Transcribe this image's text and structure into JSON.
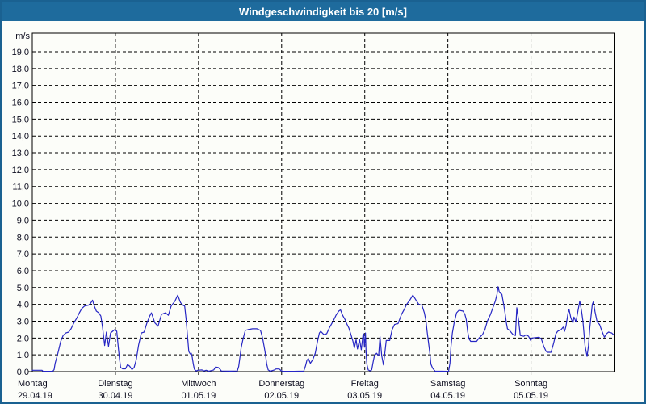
{
  "window": {
    "title": "Windgeschwindigkeit bis 20 [m/s]"
  },
  "colors": {
    "titlebar_bg": "#1e6b9d",
    "frame_border": "#1a6191",
    "page_bg": "#fcfdf9",
    "grid": "#000000",
    "axis": "#000000",
    "line": "#2626c4",
    "text": "#0c0c1e",
    "title_text": "#ffffff"
  },
  "chart_data": {
    "type": "line",
    "title": "Windgeschwindigkeit bis 20 [m/s]",
    "ylabel": "m/s",
    "unit_label": "m/s",
    "ylim": [
      0,
      20.2
    ],
    "y_tick_step": 1.0,
    "y_tick_labels": [
      "0,0",
      "1,0",
      "2,0",
      "3,0",
      "4,0",
      "5,0",
      "6,0",
      "7,0",
      "8,0",
      "9,0",
      "10,0",
      "11,0",
      "12,0",
      "13,0",
      "14,0",
      "15,0",
      "16,0",
      "17,0",
      "18,0",
      "19,0"
    ],
    "grid": "dashed",
    "legend": "none",
    "x_range_hours": [
      0,
      168
    ],
    "x_days": [
      {
        "name": "Montag",
        "date": "29.04.19"
      },
      {
        "name": "Dienstag",
        "date": "30.04.19"
      },
      {
        "name": "Mittwoch",
        "date": "01.05.19"
      },
      {
        "name": "Donnerstag",
        "date": "02.05.19"
      },
      {
        "name": "Freitag",
        "date": "03.05.19"
      },
      {
        "name": "Samstag",
        "date": "04.05.19"
      },
      {
        "name": "Sonntag",
        "date": "05.05.19"
      }
    ],
    "series": [
      {
        "name": "Windgeschwindigkeit",
        "color": "#2626c4",
        "points": [
          [
            0,
            0.08
          ],
          [
            2.8,
            0.08
          ],
          [
            3.1,
            0.02
          ],
          [
            5.9,
            0.02
          ],
          [
            6.3,
            0.12
          ],
          [
            6.6,
            0.5
          ],
          [
            7.4,
            1.1
          ],
          [
            8.2,
            1.8
          ],
          [
            8.9,
            2.15
          ],
          [
            9.7,
            2.3
          ],
          [
            10.5,
            2.35
          ],
          [
            11.2,
            2.55
          ],
          [
            12,
            2.9
          ],
          [
            12.9,
            3.2
          ],
          [
            13.6,
            3.5
          ],
          [
            14.3,
            3.75
          ],
          [
            15.1,
            3.9
          ],
          [
            16.2,
            3.95
          ],
          [
            16.8,
            4.05
          ],
          [
            17.4,
            4.25
          ],
          [
            17.9,
            3.9
          ],
          [
            18.5,
            3.6
          ],
          [
            19.2,
            3.5
          ],
          [
            19.8,
            3.3
          ],
          [
            20.3,
            2.6
          ],
          [
            20.9,
            1.55
          ],
          [
            21.4,
            2.35
          ],
          [
            22,
            1.5
          ],
          [
            22.6,
            2.3
          ],
          [
            23.2,
            2.4
          ],
          [
            23.8,
            2.5
          ],
          [
            24.4,
            2.4
          ],
          [
            24.9,
            1.3
          ],
          [
            25.2,
            0.72
          ],
          [
            25.5,
            0.25
          ],
          [
            26.1,
            0.17
          ],
          [
            26.9,
            0.17
          ],
          [
            27.5,
            0.42
          ],
          [
            28.1,
            0.33
          ],
          [
            28.8,
            0.12
          ],
          [
            29.4,
            0.25
          ],
          [
            30,
            0.7
          ],
          [
            30.7,
            1.6
          ],
          [
            31.5,
            2.3
          ],
          [
            32.3,
            2.35
          ],
          [
            33.1,
            2.9
          ],
          [
            33.9,
            3.3
          ],
          [
            34.4,
            3.5
          ],
          [
            35.4,
            2.9
          ],
          [
            36.3,
            2.7
          ],
          [
            37.3,
            3.4
          ],
          [
            38.5,
            3.5
          ],
          [
            39.3,
            3.35
          ],
          [
            40.1,
            3.9
          ],
          [
            41.2,
            4.2
          ],
          [
            42,
            4.55
          ],
          [
            42.8,
            4.1
          ],
          [
            43.5,
            3.95
          ],
          [
            44,
            3.9
          ],
          [
            44.4,
            3.15
          ],
          [
            44.9,
            1.9
          ],
          [
            45.2,
            1.2
          ],
          [
            45.6,
            1.05
          ],
          [
            45.9,
            1.1
          ],
          [
            46.2,
            0.85
          ],
          [
            46.5,
            0.45
          ],
          [
            46.8,
            0.15
          ],
          [
            47.3,
            0.04
          ],
          [
            47.8,
            0.08
          ],
          [
            49,
            0.1
          ],
          [
            49.6,
            0.04
          ],
          [
            50.2,
            0.08
          ],
          [
            51,
            0.03
          ],
          [
            52.4,
            0.1
          ],
          [
            52.9,
            0.28
          ],
          [
            53.7,
            0.25
          ],
          [
            54.2,
            0.15
          ],
          [
            54.6,
            0.04
          ],
          [
            57.2,
            0.03
          ],
          [
            59.2,
            0.04
          ],
          [
            59.6,
            0.3
          ],
          [
            60,
            0.9
          ],
          [
            60.3,
            1.4
          ],
          [
            60.8,
            1.9
          ],
          [
            61.5,
            2.45
          ],
          [
            62.3,
            2.5
          ],
          [
            63.6,
            2.55
          ],
          [
            64.9,
            2.55
          ],
          [
            65.9,
            2.45
          ],
          [
            66.5,
            2.0
          ],
          [
            67.2,
            1.2
          ],
          [
            67.7,
            0.45
          ],
          [
            68.1,
            0.1
          ],
          [
            68.7,
            0.03
          ],
          [
            69.9,
            0.1
          ],
          [
            70.4,
            0.16
          ],
          [
            71.3,
            0.16
          ],
          [
            71.9,
            0.05
          ],
          [
            72.5,
            0.02
          ],
          [
            75.5,
            0.02
          ],
          [
            78.4,
            0.03
          ],
          [
            78.9,
            0.35
          ],
          [
            79.3,
            0.67
          ],
          [
            79.7,
            0.78
          ],
          [
            80.3,
            0.5
          ],
          [
            81,
            0.72
          ],
          [
            81.7,
            1.1
          ],
          [
            82.3,
            1.75
          ],
          [
            82.9,
            2.3
          ],
          [
            83.3,
            2.4
          ],
          [
            84.2,
            2.2
          ],
          [
            85,
            2.25
          ],
          [
            85.9,
            2.65
          ],
          [
            87,
            3.05
          ],
          [
            87.7,
            3.35
          ],
          [
            88.5,
            3.6
          ],
          [
            89,
            3.67
          ],
          [
            89.6,
            3.35
          ],
          [
            90.3,
            3.1
          ],
          [
            90.8,
            2.85
          ],
          [
            91.4,
            2.6
          ],
          [
            92,
            2.2
          ],
          [
            92.6,
            1.8
          ],
          [
            93,
            1.4
          ],
          [
            93.5,
            1.9
          ],
          [
            93.9,
            1.35
          ],
          [
            94.5,
            1.9
          ],
          [
            95,
            1.3
          ],
          [
            95.5,
            2.2
          ],
          [
            95.7,
            2.25
          ],
          [
            95.9,
            1.45
          ],
          [
            96.2,
            2.3
          ],
          [
            96.4,
            1.1
          ],
          [
            96.6,
            0.45
          ],
          [
            97,
            0.1
          ],
          [
            97.5,
            0.05
          ],
          [
            98,
            0.1
          ],
          [
            98.4,
            0.55
          ],
          [
            98.8,
            0.95
          ],
          [
            99.4,
            1.1
          ],
          [
            100,
            0.95
          ],
          [
            100.4,
            2.08
          ],
          [
            100.9,
            0.95
          ],
          [
            101.4,
            0.4
          ],
          [
            102.2,
            1.85
          ],
          [
            103.2,
            1.85
          ],
          [
            103.9,
            2.5
          ],
          [
            104.6,
            2.8
          ],
          [
            105.6,
            2.85
          ],
          [
            106.6,
            3.4
          ],
          [
            107.4,
            3.7
          ],
          [
            108.1,
            4.0
          ],
          [
            109,
            4.25
          ],
          [
            109.9,
            4.55
          ],
          [
            110.8,
            4.25
          ],
          [
            111.6,
            4.0
          ],
          [
            112.5,
            3.95
          ],
          [
            113.2,
            3.5
          ],
          [
            113.7,
            3.0
          ],
          [
            114,
            2.4
          ],
          [
            114.4,
            1.75
          ],
          [
            114.8,
            1.1
          ],
          [
            115.1,
            0.45
          ],
          [
            115.6,
            0.2
          ],
          [
            116.3,
            0.03
          ],
          [
            120.2,
            0.02
          ],
          [
            120.6,
            0.5
          ],
          [
            120.9,
            1.5
          ],
          [
            121.3,
            2.3
          ],
          [
            121.8,
            2.9
          ],
          [
            122.5,
            3.5
          ],
          [
            123.2,
            3.65
          ],
          [
            124.4,
            3.6
          ],
          [
            124.9,
            3.4
          ],
          [
            125.3,
            3.1
          ],
          [
            125.7,
            2.4
          ],
          [
            126.1,
            1.95
          ],
          [
            126.6,
            1.8
          ],
          [
            128.3,
            1.8
          ],
          [
            129,
            2.0
          ],
          [
            130,
            2.2
          ],
          [
            130.7,
            2.5
          ],
          [
            131.4,
            3.0
          ],
          [
            132.3,
            3.4
          ],
          [
            133,
            3.8
          ],
          [
            133.7,
            4.2
          ],
          [
            134.2,
            4.6
          ],
          [
            134.5,
            5.05
          ],
          [
            134.9,
            4.7
          ],
          [
            135.6,
            4.6
          ],
          [
            136.1,
            4.0
          ],
          [
            136.5,
            3.5
          ],
          [
            136.9,
            2.9
          ],
          [
            137.2,
            2.55
          ],
          [
            137.8,
            2.45
          ],
          [
            138.8,
            2.2
          ],
          [
            139.5,
            2.15
          ],
          [
            139.9,
            3.8
          ],
          [
            140.4,
            3.1
          ],
          [
            140.9,
            2.15
          ],
          [
            141.9,
            2.1
          ],
          [
            142.6,
            2.2
          ],
          [
            143.3,
            2.1
          ],
          [
            143.9,
            1.85
          ],
          [
            144.3,
            2.0
          ],
          [
            146.3,
            2.05
          ],
          [
            147,
            1.95
          ],
          [
            147.7,
            1.5
          ],
          [
            148.4,
            1.2
          ],
          [
            148.8,
            1.15
          ],
          [
            149.8,
            1.15
          ],
          [
            150.5,
            1.65
          ],
          [
            151.2,
            2.25
          ],
          [
            151.7,
            2.4
          ],
          [
            152.7,
            2.5
          ],
          [
            153.3,
            2.65
          ],
          [
            153.7,
            2.4
          ],
          [
            154.1,
            2.7
          ],
          [
            154.7,
            3.5
          ],
          [
            155,
            3.7
          ],
          [
            155.5,
            3.2
          ],
          [
            156.1,
            2.9
          ],
          [
            156.4,
            3.25
          ],
          [
            157,
            2.95
          ],
          [
            157.5,
            3.55
          ],
          [
            158.1,
            4.2
          ],
          [
            158.6,
            3.6
          ],
          [
            159,
            3.0
          ],
          [
            159.6,
            1.55
          ],
          [
            160.2,
            0.9
          ],
          [
            160.6,
            1.55
          ],
          [
            161,
            2.65
          ],
          [
            161.7,
            4.0
          ],
          [
            162,
            4.15
          ],
          [
            162.5,
            3.55
          ],
          [
            163.1,
            2.95
          ],
          [
            163.8,
            2.8
          ],
          [
            164.5,
            2.4
          ],
          [
            165.2,
            2.05
          ],
          [
            165.8,
            2.25
          ],
          [
            166.4,
            2.35
          ],
          [
            167.3,
            2.3
          ],
          [
            167.8,
            2.2
          ]
        ]
      }
    ]
  }
}
